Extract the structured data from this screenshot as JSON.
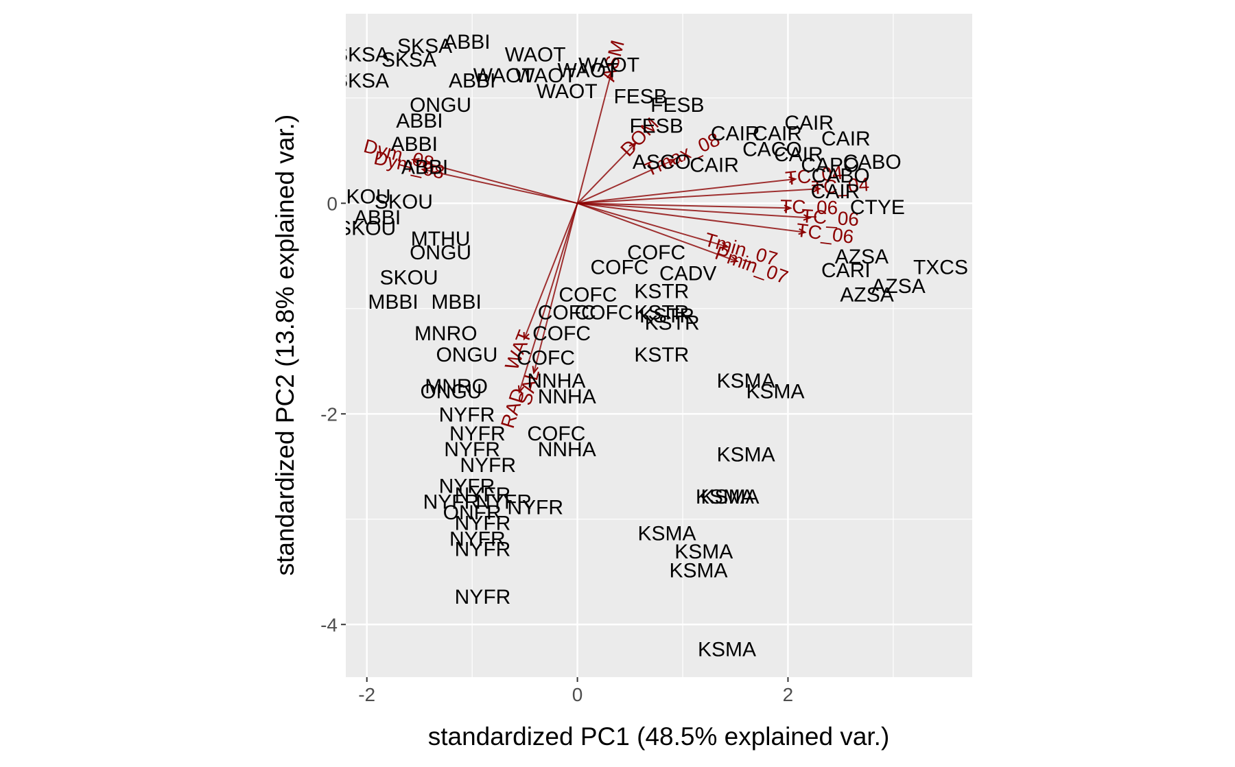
{
  "chart_data": {
    "type": "scatter",
    "title": "",
    "xlabel": "standardized PC1 (48.5% explained var.)",
    "ylabel": "standardized PC2 (13.8% explained var.)",
    "xlim": [
      -2.2,
      3.75
    ],
    "ylim": [
      -4.5,
      1.8
    ],
    "x_ticks": [
      -2,
      0,
      2
    ],
    "y_ticks": [
      -4,
      -2,
      0
    ],
    "grid": true,
    "legend": "none",
    "colors": {
      "panel": "#ebebeb",
      "grid": "#ffffff",
      "observations": "#000000",
      "variables": "#8b0000"
    },
    "observations": [
      {
        "label": "SKSA",
        "x": -1.45,
        "y": 1.48
      },
      {
        "label": "ABBI",
        "x": -1.05,
        "y": 1.52
      },
      {
        "label": "SKSA",
        "x": -2.05,
        "y": 1.4
      },
      {
        "label": "SKSA",
        "x": -2.05,
        "y": 1.15
      },
      {
        "label": "SKSA",
        "x": -1.6,
        "y": 1.35
      },
      {
        "label": "ABBI",
        "x": -1.0,
        "y": 1.15
      },
      {
        "label": "WAOT",
        "x": -0.4,
        "y": 1.4
      },
      {
        "label": "WAOT",
        "x": 0.1,
        "y": 1.25
      },
      {
        "label": "WAOT",
        "x": -0.1,
        "y": 1.05
      },
      {
        "label": "WAOT",
        "x": 0.3,
        "y": 1.3
      },
      {
        "label": "WAOT",
        "x": -0.7,
        "y": 1.2
      },
      {
        "label": "WAOT",
        "x": -0.3,
        "y": 1.2
      },
      {
        "label": "ONGU",
        "x": -1.3,
        "y": 0.92
      },
      {
        "label": "FESB",
        "x": 0.95,
        "y": 0.92
      },
      {
        "label": "FESB",
        "x": 0.6,
        "y": 1.0
      },
      {
        "label": "ABBI",
        "x": -1.5,
        "y": 0.77
      },
      {
        "label": "ABBI",
        "x": -1.55,
        "y": 0.55
      },
      {
        "label": "ABBI",
        "x": -1.45,
        "y": 0.33
      },
      {
        "label": "FESB",
        "x": 0.75,
        "y": 0.72
      },
      {
        "label": "CAIR",
        "x": 1.5,
        "y": 0.65
      },
      {
        "label": "CAIR",
        "x": 2.2,
        "y": 0.75
      },
      {
        "label": "CAIR",
        "x": 2.55,
        "y": 0.6
      },
      {
        "label": "CAIR",
        "x": 1.9,
        "y": 0.65
      },
      {
        "label": "CACO",
        "x": 1.85,
        "y": 0.5
      },
      {
        "label": "CAPO",
        "x": 2.4,
        "y": 0.35
      },
      {
        "label": "CABO",
        "x": 2.8,
        "y": 0.38
      },
      {
        "label": "CAIR",
        "x": 2.1,
        "y": 0.45
      },
      {
        "label": "CABO",
        "x": 2.5,
        "y": 0.25
      },
      {
        "label": "CAIR",
        "x": 1.3,
        "y": 0.35
      },
      {
        "label": "ASCO",
        "x": 0.8,
        "y": 0.38
      },
      {
        "label": "CAIR",
        "x": 2.45,
        "y": 0.1
      },
      {
        "label": "CTYE",
        "x": 2.85,
        "y": -0.05
      },
      {
        "label": "SKOU",
        "x": -2.05,
        "y": 0.05
      },
      {
        "label": "SKOU",
        "x": -2.0,
        "y": -0.25
      },
      {
        "label": "SKOU",
        "x": -1.65,
        "y": 0.0
      },
      {
        "label": "ABBI",
        "x": -1.9,
        "y": -0.15
      },
      {
        "label": "MTHU",
        "x": -1.3,
        "y": -0.35
      },
      {
        "label": "ONGU",
        "x": -1.3,
        "y": -0.48
      },
      {
        "label": "SKOU",
        "x": -1.6,
        "y": -0.72
      },
      {
        "label": "MBBI",
        "x": -1.75,
        "y": -0.95
      },
      {
        "label": "MBBI",
        "x": -1.15,
        "y": -0.95
      },
      {
        "label": "CADV",
        "x": 1.05,
        "y": -0.68
      },
      {
        "label": "COFC",
        "x": 0.75,
        "y": -0.48
      },
      {
        "label": "COFC",
        "x": 0.4,
        "y": -0.62
      },
      {
        "label": "COFC",
        "x": 0.1,
        "y": -0.88
      },
      {
        "label": "COFC",
        "x": -0.1,
        "y": -1.05
      },
      {
        "label": "COFC",
        "x": 0.25,
        "y": -1.05
      },
      {
        "label": "COFC",
        "x": -0.15,
        "y": -1.25
      },
      {
        "label": "COFC",
        "x": -0.3,
        "y": -1.48
      },
      {
        "label": "KSTR",
        "x": 0.8,
        "y": -0.85
      },
      {
        "label": "KSTR",
        "x": 0.9,
        "y": -1.15
      },
      {
        "label": "KSTR",
        "x": 0.85,
        "y": -1.08
      },
      {
        "label": "KSTR",
        "x": 0.8,
        "y": -1.05
      },
      {
        "label": "KSTR",
        "x": 0.8,
        "y": -1.45
      },
      {
        "label": "AZSA",
        "x": 2.7,
        "y": -0.52
      },
      {
        "label": "CARI",
        "x": 2.55,
        "y": -0.65
      },
      {
        "label": "TXCS",
        "x": 3.45,
        "y": -0.62
      },
      {
        "label": "AZSA",
        "x": 3.05,
        "y": -0.8
      },
      {
        "label": "AZSA",
        "x": 2.75,
        "y": -0.88
      },
      {
        "label": "MNRO",
        "x": -1.25,
        "y": -1.25
      },
      {
        "label": "ONGU",
        "x": -1.05,
        "y": -1.45
      },
      {
        "label": "NNHA",
        "x": -0.2,
        "y": -1.7
      },
      {
        "label": "MNRO",
        "x": -1.15,
        "y": -1.75
      },
      {
        "label": "ONGU",
        "x": -1.2,
        "y": -1.8
      },
      {
        "label": "NNHA",
        "x": -0.1,
        "y": -1.85
      },
      {
        "label": "KSMA",
        "x": 1.6,
        "y": -1.7
      },
      {
        "label": "KSMA",
        "x": 1.88,
        "y": -1.8
      },
      {
        "label": "NYFR",
        "x": -1.05,
        "y": -2.02
      },
      {
        "label": "COFC",
        "x": -0.2,
        "y": -2.2
      },
      {
        "label": "NNHA",
        "x": -0.1,
        "y": -2.35
      },
      {
        "label": "NYFR",
        "x": -0.95,
        "y": -2.2
      },
      {
        "label": "NYFR",
        "x": -1.0,
        "y": -2.35
      },
      {
        "label": "NYFR",
        "x": -0.85,
        "y": -2.5
      },
      {
        "label": "KSMA",
        "x": 1.6,
        "y": -2.4
      },
      {
        "label": "NYFR",
        "x": -1.05,
        "y": -2.7
      },
      {
        "label": "NYFR",
        "x": -0.9,
        "y": -2.78
      },
      {
        "label": "NYFR",
        "x": -1.2,
        "y": -2.85
      },
      {
        "label": "NYFR",
        "x": -0.7,
        "y": -2.85
      },
      {
        "label": "NYFR",
        "x": -0.4,
        "y": -2.9
      },
      {
        "label": "ONFR",
        "x": -1.0,
        "y": -2.95
      },
      {
        "label": "NYFR",
        "x": -0.9,
        "y": -3.05
      },
      {
        "label": "KSMA",
        "x": 1.4,
        "y": -2.8
      },
      {
        "label": "KSMA",
        "x": 1.45,
        "y": -2.8
      },
      {
        "label": "KSMA",
        "x": 0.85,
        "y": -3.15
      },
      {
        "label": "NYFR",
        "x": -0.95,
        "y": -3.2
      },
      {
        "label": "NYFR",
        "x": -0.9,
        "y": -3.3
      },
      {
        "label": "KSMA",
        "x": 1.2,
        "y": -3.32
      },
      {
        "label": "KSMA",
        "x": 1.15,
        "y": -3.5
      },
      {
        "label": "NYFR",
        "x": -0.9,
        "y": -3.75
      },
      {
        "label": "KSMA",
        "x": 1.42,
        "y": -4.25
      }
    ],
    "variables": [
      {
        "label": "Dym_08",
        "x": -1.7,
        "y": 0.45
      },
      {
        "label": "Dym_08",
        "x": -1.6,
        "y": 0.35
      },
      {
        "label": "ASM",
        "x": 0.35,
        "y": 1.35
      },
      {
        "label": "DOM",
        "x": 0.6,
        "y": 0.62
      },
      {
        "label": "Tmax_08",
        "x": 1.0,
        "y": 0.45
      },
      {
        "label": "TC_04",
        "x": 2.25,
        "y": 0.25
      },
      {
        "label": "TC_04",
        "x": 2.5,
        "y": 0.15
      },
      {
        "label": "TC_06",
        "x": 2.2,
        "y": -0.05
      },
      {
        "label": "TC_06",
        "x": 2.4,
        "y": -0.15
      },
      {
        "label": "TC_06",
        "x": 2.35,
        "y": -0.3
      },
      {
        "label": "Tmin_07",
        "x": 1.55,
        "y": -0.45
      },
      {
        "label": "Pmin_07",
        "x": 1.65,
        "y": -0.6
      },
      {
        "label": "WAT",
        "x": -0.55,
        "y": -1.4
      },
      {
        "label": "SAL",
        "x": -0.45,
        "y": -1.75
      },
      {
        "label": "RAD",
        "x": -0.6,
        "y": -1.95
      }
    ]
  }
}
